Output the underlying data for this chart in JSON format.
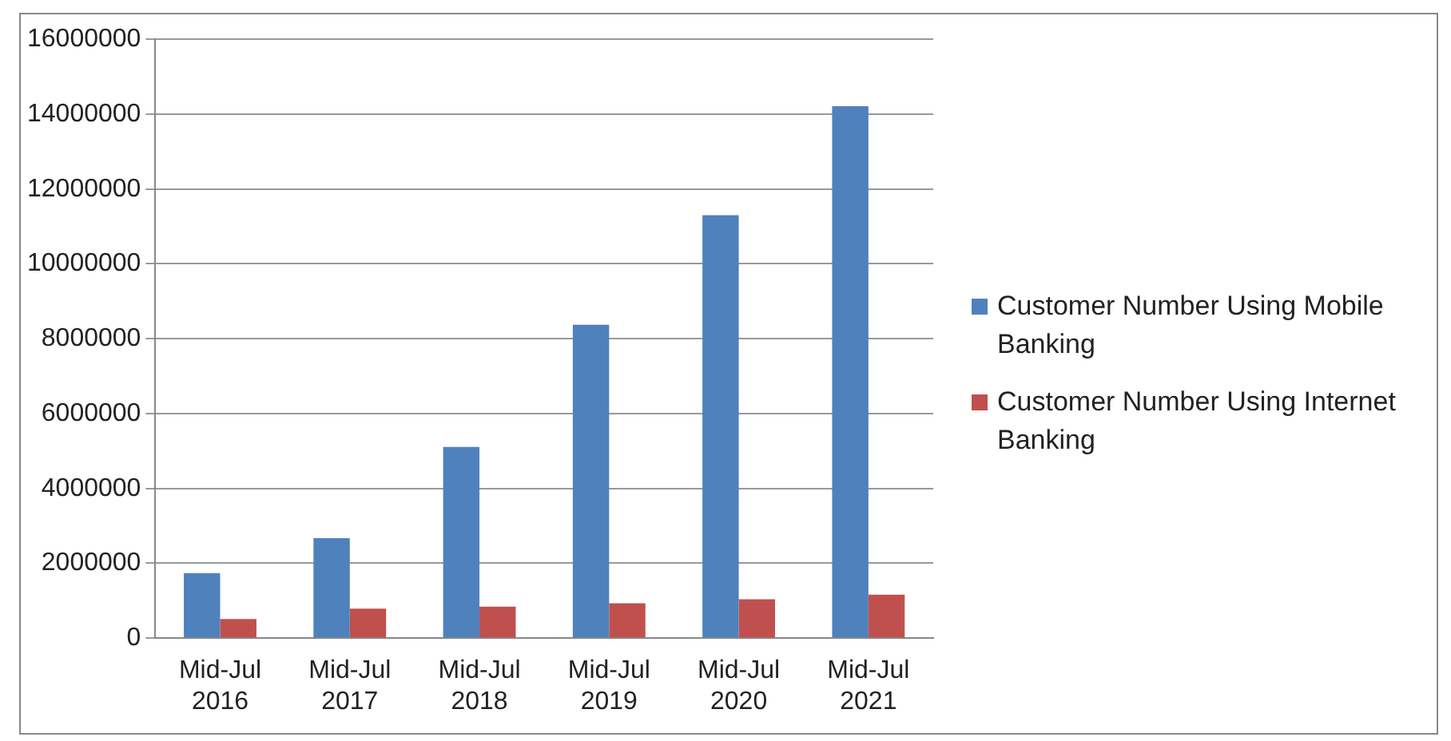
{
  "chart_data": {
    "type": "bar",
    "categories": [
      "Mid-Jul 2016",
      "Mid-Jul 2017",
      "Mid-Jul 2018",
      "Mid-Jul 2019",
      "Mid-Jul 2020",
      "Mid-Jul 2021"
    ],
    "series": [
      {
        "name": "Customer Number Using Mobile Banking",
        "color": "#4f81bd",
        "values": [
          1740000,
          2670000,
          5110000,
          8370000,
          11300000,
          14210000
        ]
      },
      {
        "name": "Customer Number Using Internet Banking",
        "color": "#c0504d",
        "values": [
          510000,
          790000,
          840000,
          930000,
          1040000,
          1160000
        ]
      }
    ],
    "ylim": [
      0,
      16000000
    ],
    "yticks": [
      0,
      2000000,
      4000000,
      6000000,
      8000000,
      10000000,
      12000000,
      14000000,
      16000000
    ],
    "grid": "y",
    "legend": "right"
  }
}
